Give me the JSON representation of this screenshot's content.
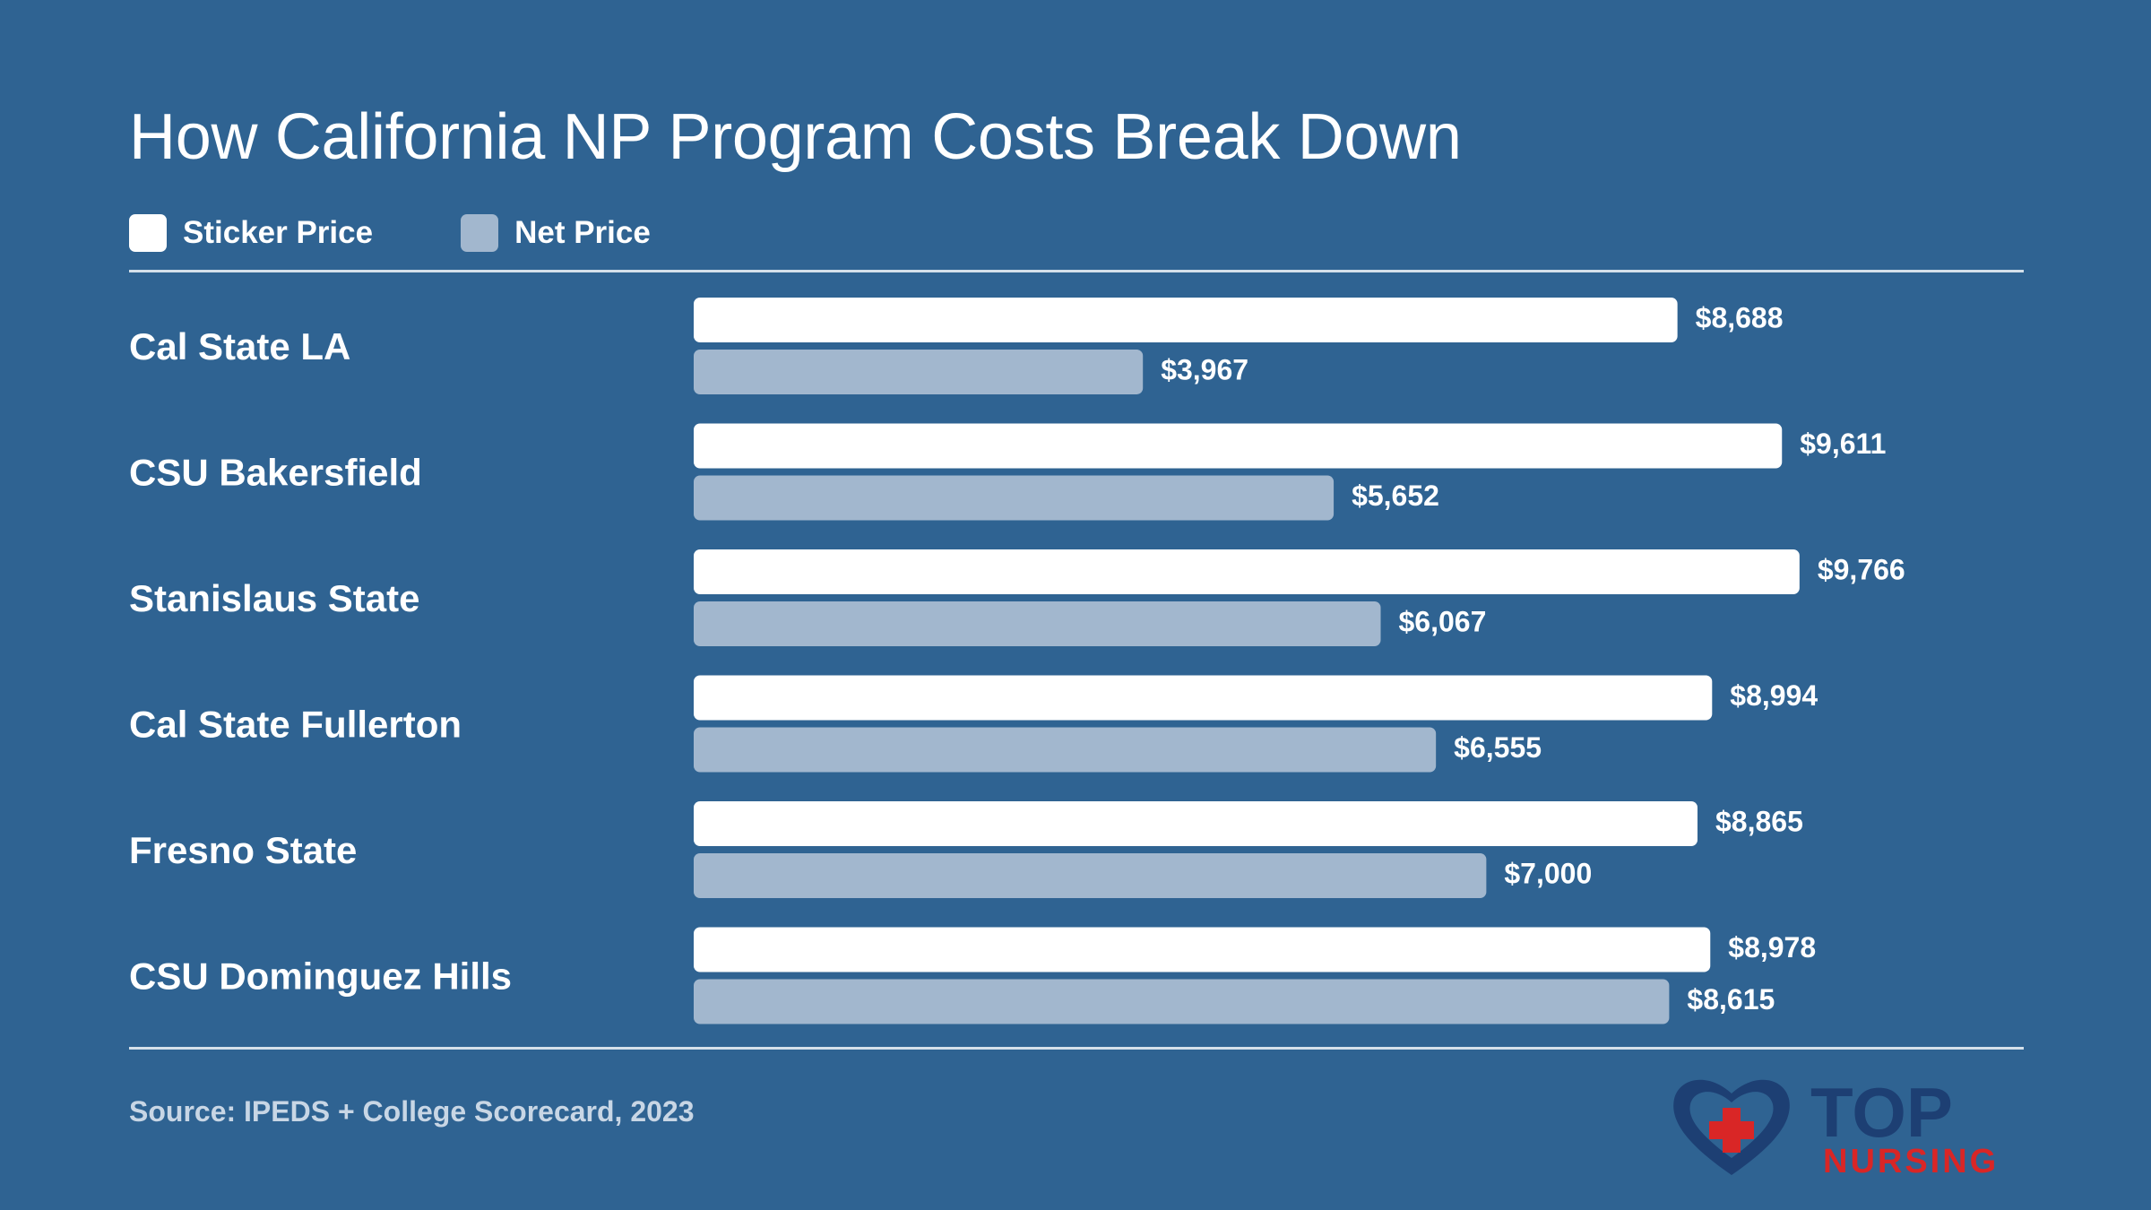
{
  "chart_data": {
    "type": "bar",
    "orientation": "horizontal",
    "title": "How California NP Program Costs Break Down",
    "categories": [
      "Cal State LA",
      "CSU Bakersfield",
      "Stanislaus State",
      "Cal State Fullerton",
      "Fresno State",
      "CSU Dominguez Hills"
    ],
    "series": [
      {
        "name": "Sticker Price",
        "values": [
          8688,
          9611,
          9766,
          8994,
          8865,
          8978
        ],
        "labels": [
          "$8,688",
          "$9,611",
          "$9,766",
          "$8,994",
          "$8,865",
          "$8,978"
        ],
        "color": "#ffffff"
      },
      {
        "name": "Net Price",
        "values": [
          3967,
          5652,
          6067,
          6555,
          7000,
          8615
        ],
        "labels": [
          "$3,967",
          "$5,652",
          "$6,067",
          "$6,555",
          "$7,000",
          "$8,615"
        ],
        "color": "#a2b7ce"
      }
    ],
    "xlim": [
      0,
      10000
    ],
    "legend_position": "top-left",
    "grid": false,
    "source": "Source: IPEDS + College Scorecard, 2023"
  },
  "logo": {
    "line1": "TOP",
    "line2": "NURSING",
    "icon": "heart-cross-icon"
  }
}
